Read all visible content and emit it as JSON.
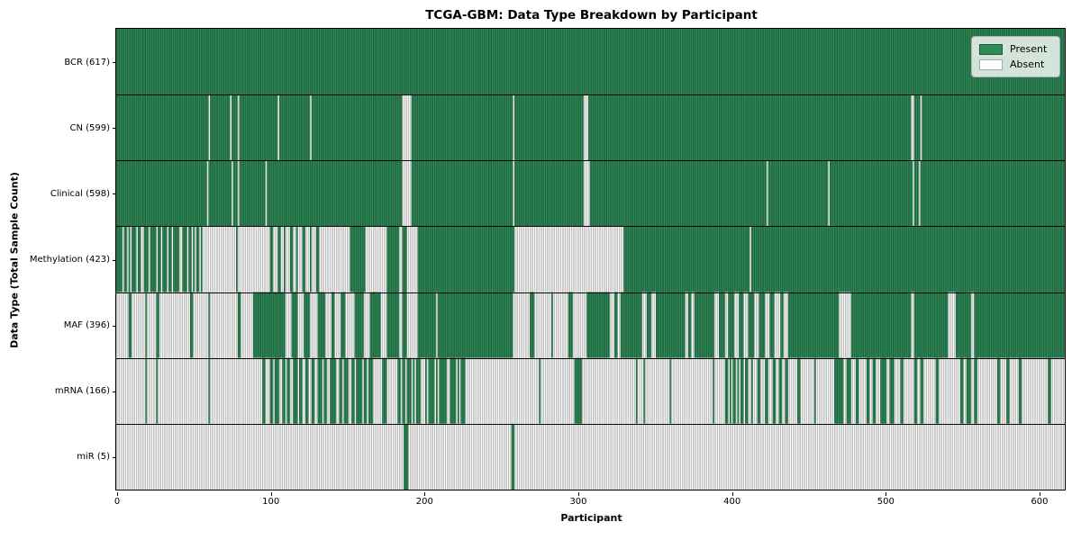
{
  "chart_data": {
    "type": "heatmap",
    "title": "TCGA-GBM: Data Type Breakdown by Participant",
    "xlabel": "Participant",
    "ylabel": "Data Type (Total Sample Count)",
    "x_ticks": [
      0,
      100,
      200,
      300,
      400,
      500,
      600
    ],
    "n_participants": 617,
    "x_range": [
      0,
      617
    ],
    "grid": false,
    "legend_position": "upper right",
    "legend": [
      {
        "label": "Present",
        "color": "#2e8b57"
      },
      {
        "label": "Absent",
        "color": "#ffffff"
      }
    ],
    "colors": {
      "present": "#2e8b57",
      "absent": "#ffffff",
      "cell_edge": "rgba(0,0,0,0.45)",
      "row_separator": "#000000",
      "spine": "#000000"
    },
    "rows": [
      {
        "label": "BCR (617)",
        "count": 617,
        "runs": [
          [
            1,
            617
          ]
        ]
      },
      {
        "label": "CN (599)",
        "count": 599,
        "runs": [
          [
            1,
            60
          ],
          [
            0,
            1
          ],
          [
            1,
            13
          ],
          [
            0,
            1
          ],
          [
            1,
            4
          ],
          [
            0,
            1
          ],
          [
            1,
            25
          ],
          [
            0,
            1
          ],
          [
            1,
            20
          ],
          [
            0,
            1
          ],
          [
            1,
            59
          ],
          [
            0,
            6
          ],
          [
            1,
            66
          ],
          [
            0,
            1
          ],
          [
            1,
            45
          ],
          [
            0,
            3
          ],
          [
            1,
            210
          ],
          [
            0,
            2
          ],
          [
            1,
            4
          ],
          [
            0,
            1
          ],
          [
            1,
            93
          ]
        ]
      },
      {
        "label": "Clinical (598)",
        "count": 598,
        "runs": [
          [
            1,
            59
          ],
          [
            0,
            1
          ],
          [
            1,
            15
          ],
          [
            0,
            1
          ],
          [
            1,
            3
          ],
          [
            0,
            1
          ],
          [
            1,
            17
          ],
          [
            0,
            1
          ],
          [
            1,
            88
          ],
          [
            0,
            6
          ],
          [
            1,
            66
          ],
          [
            0,
            1
          ],
          [
            1,
            45
          ],
          [
            0,
            4
          ],
          [
            1,
            115
          ],
          [
            0,
            1
          ],
          [
            1,
            39
          ],
          [
            0,
            1
          ],
          [
            1,
            54
          ],
          [
            0,
            1
          ],
          [
            1,
            3
          ],
          [
            0,
            1
          ],
          [
            1,
            94
          ]
        ]
      },
      {
        "label": "Methylation (423)",
        "count": 423,
        "runs": [
          [
            1,
            4
          ],
          [
            0,
            1
          ],
          [
            1,
            2
          ],
          [
            0,
            1
          ],
          [
            1,
            1
          ],
          [
            0,
            1
          ],
          [
            1,
            3
          ],
          [
            0,
            1
          ],
          [
            1,
            2
          ],
          [
            0,
            2
          ],
          [
            1,
            3
          ],
          [
            0,
            1
          ],
          [
            1,
            4
          ],
          [
            0,
            1
          ],
          [
            1,
            2
          ],
          [
            0,
            1
          ],
          [
            1,
            3
          ],
          [
            0,
            1
          ],
          [
            1,
            2
          ],
          [
            0,
            1
          ],
          [
            1,
            4
          ],
          [
            0,
            2
          ],
          [
            1,
            3
          ],
          [
            0,
            1
          ],
          [
            1,
            2
          ],
          [
            0,
            1
          ],
          [
            1,
            1
          ],
          [
            0,
            1
          ],
          [
            1,
            2
          ],
          [
            0,
            1
          ],
          [
            1,
            1
          ],
          [
            0,
            22
          ],
          [
            1,
            1
          ],
          [
            0,
            21
          ],
          [
            1,
            2
          ],
          [
            0,
            3
          ],
          [
            1,
            2
          ],
          [
            0,
            2
          ],
          [
            1,
            1
          ],
          [
            0,
            3
          ],
          [
            1,
            2
          ],
          [
            0,
            2
          ],
          [
            1,
            1
          ],
          [
            0,
            3
          ],
          [
            1,
            2
          ],
          [
            0,
            3
          ],
          [
            1,
            1
          ],
          [
            0,
            3
          ],
          [
            1,
            2
          ],
          [
            0,
            20
          ],
          [
            1,
            10
          ],
          [
            0,
            14
          ],
          [
            1,
            8
          ],
          [
            0,
            2
          ],
          [
            1,
            3
          ],
          [
            0,
            7
          ],
          [
            1,
            63
          ],
          [
            0,
            71
          ],
          [
            1,
            82
          ],
          [
            0,
            1
          ],
          [
            1,
            204
          ]
        ]
      },
      {
        "label": "MAF (396)",
        "count": 396,
        "runs": [
          [
            0,
            8
          ],
          [
            1,
            2
          ],
          [
            0,
            9
          ],
          [
            1,
            1
          ],
          [
            0,
            6
          ],
          [
            1,
            2
          ],
          [
            0,
            20
          ],
          [
            1,
            2
          ],
          [
            0,
            10
          ],
          [
            1,
            1
          ],
          [
            0,
            18
          ],
          [
            1,
            2
          ],
          [
            0,
            8
          ],
          [
            1,
            21
          ],
          [
            0,
            4
          ],
          [
            1,
            4
          ],
          [
            0,
            4
          ],
          [
            1,
            4
          ],
          [
            0,
            5
          ],
          [
            1,
            5
          ],
          [
            0,
            4
          ],
          [
            1,
            2
          ],
          [
            0,
            4
          ],
          [
            1,
            3
          ],
          [
            0,
            6
          ],
          [
            1,
            6
          ],
          [
            0,
            4
          ],
          [
            1,
            7
          ],
          [
            0,
            4
          ],
          [
            1,
            8
          ],
          [
            0,
            2
          ],
          [
            1,
            3
          ],
          [
            0,
            7
          ],
          [
            1,
            12
          ],
          [
            0,
            1
          ],
          [
            1,
            49
          ],
          [
            0,
            11
          ],
          [
            1,
            3
          ],
          [
            0,
            11
          ],
          [
            1,
            1
          ],
          [
            0,
            10
          ],
          [
            1,
            3
          ],
          [
            0,
            9
          ],
          [
            1,
            15
          ],
          [
            0,
            3
          ],
          [
            1,
            2
          ],
          [
            0,
            2
          ],
          [
            1,
            14
          ],
          [
            0,
            3
          ],
          [
            1,
            3
          ],
          [
            0,
            3
          ],
          [
            1,
            19
          ],
          [
            0,
            2
          ],
          [
            1,
            2
          ],
          [
            0,
            2
          ],
          [
            1,
            13
          ],
          [
            0,
            3
          ],
          [
            1,
            4
          ],
          [
            0,
            2
          ],
          [
            1,
            4
          ],
          [
            0,
            3
          ],
          [
            1,
            3
          ],
          [
            0,
            3
          ],
          [
            1,
            4
          ],
          [
            0,
            3
          ],
          [
            1,
            4
          ],
          [
            0,
            3
          ],
          [
            1,
            3
          ],
          [
            0,
            4
          ],
          [
            1,
            2
          ],
          [
            0,
            3
          ],
          [
            1,
            33
          ],
          [
            0,
            8
          ],
          [
            1,
            39
          ],
          [
            0,
            2
          ],
          [
            1,
            22
          ],
          [
            0,
            5
          ],
          [
            1,
            10
          ],
          [
            0,
            2
          ],
          [
            1,
            59
          ]
        ]
      },
      {
        "label": "mRNA (166)",
        "count": 166,
        "runs": [
          [
            0,
            19
          ],
          [
            1,
            1
          ],
          [
            0,
            6
          ],
          [
            1,
            1
          ],
          [
            0,
            33
          ],
          [
            1,
            1
          ],
          [
            0,
            34
          ],
          [
            1,
            2
          ],
          [
            0,
            3
          ],
          [
            1,
            2
          ],
          [
            0,
            1
          ],
          [
            1,
            3
          ],
          [
            0,
            2
          ],
          [
            1,
            2
          ],
          [
            0,
            1
          ],
          [
            1,
            2
          ],
          [
            0,
            2
          ],
          [
            1,
            3
          ],
          [
            0,
            1
          ],
          [
            1,
            2
          ],
          [
            0,
            2
          ],
          [
            1,
            2
          ],
          [
            0,
            2
          ],
          [
            1,
            2
          ],
          [
            0,
            2
          ],
          [
            1,
            3
          ],
          [
            0,
            1
          ],
          [
            1,
            2
          ],
          [
            0,
            2
          ],
          [
            1,
            4
          ],
          [
            0,
            2
          ],
          [
            1,
            2
          ],
          [
            0,
            1
          ],
          [
            1,
            3
          ],
          [
            0,
            2
          ],
          [
            1,
            2
          ],
          [
            0,
            1
          ],
          [
            1,
            4
          ],
          [
            0,
            1
          ],
          [
            1,
            2
          ],
          [
            0,
            1
          ],
          [
            1,
            3
          ],
          [
            0,
            6
          ],
          [
            1,
            3
          ],
          [
            0,
            7
          ],
          [
            1,
            2
          ],
          [
            0,
            1
          ],
          [
            1,
            2
          ],
          [
            0,
            1
          ],
          [
            1,
            3
          ],
          [
            0,
            1
          ],
          [
            1,
            1
          ],
          [
            0,
            1
          ],
          [
            1,
            3
          ],
          [
            0,
            3
          ],
          [
            1,
            1
          ],
          [
            0,
            1
          ],
          [
            1,
            4
          ],
          [
            0,
            1
          ],
          [
            1,
            1
          ],
          [
            0,
            1
          ],
          [
            1,
            5
          ],
          [
            0,
            2
          ],
          [
            1,
            4
          ],
          [
            0,
            1
          ],
          [
            1,
            1
          ],
          [
            0,
            1
          ],
          [
            1,
            3
          ],
          [
            0,
            48
          ],
          [
            1,
            1
          ],
          [
            0,
            22
          ],
          [
            1,
            5
          ],
          [
            0,
            35
          ],
          [
            1,
            1
          ],
          [
            0,
            4
          ],
          [
            1,
            1
          ],
          [
            0,
            16
          ],
          [
            1,
            1
          ],
          [
            0,
            27
          ],
          [
            1,
            1
          ],
          [
            0,
            7
          ],
          [
            1,
            2
          ],
          [
            0,
            1
          ],
          [
            1,
            1
          ],
          [
            0,
            1
          ],
          [
            1,
            2
          ],
          [
            0,
            1
          ],
          [
            1,
            1
          ],
          [
            0,
            1
          ],
          [
            1,
            2
          ],
          [
            0,
            1
          ],
          [
            1,
            2
          ],
          [
            0,
            2
          ],
          [
            1,
            1
          ],
          [
            0,
            3
          ],
          [
            1,
            2
          ],
          [
            0,
            3
          ],
          [
            1,
            2
          ],
          [
            0,
            3
          ],
          [
            1,
            2
          ],
          [
            0,
            2
          ],
          [
            1,
            2
          ],
          [
            0,
            2
          ],
          [
            1,
            2
          ],
          [
            0,
            6
          ],
          [
            1,
            2
          ],
          [
            0,
            9
          ],
          [
            1,
            1
          ],
          [
            0,
            12
          ],
          [
            1,
            6
          ],
          [
            0,
            2
          ],
          [
            1,
            3
          ],
          [
            0,
            3
          ],
          [
            1,
            2
          ],
          [
            0,
            5
          ],
          [
            1,
            2
          ],
          [
            0,
            2
          ],
          [
            1,
            2
          ],
          [
            0,
            3
          ],
          [
            1,
            4
          ],
          [
            0,
            2
          ],
          [
            1,
            3
          ],
          [
            0,
            4
          ],
          [
            1,
            2
          ],
          [
            0,
            7
          ],
          [
            1,
            2
          ],
          [
            0,
            2
          ],
          [
            1,
            2
          ],
          [
            0,
            8
          ],
          [
            1,
            2
          ],
          [
            0,
            14
          ],
          [
            1,
            2
          ],
          [
            0,
            2
          ],
          [
            1,
            3
          ],
          [
            0,
            2
          ],
          [
            1,
            2
          ],
          [
            0,
            13
          ],
          [
            1,
            2
          ],
          [
            0,
            4
          ],
          [
            1,
            2
          ],
          [
            0,
            6
          ],
          [
            1,
            2
          ],
          [
            0,
            17
          ],
          [
            1,
            2
          ],
          [
            0,
            9
          ]
        ]
      },
      {
        "label": "miR (5)",
        "count": 5,
        "runs": [
          [
            0,
            187
          ],
          [
            1,
            3
          ],
          [
            0,
            67
          ],
          [
            1,
            2
          ],
          [
            0,
            358
          ]
        ]
      }
    ]
  }
}
